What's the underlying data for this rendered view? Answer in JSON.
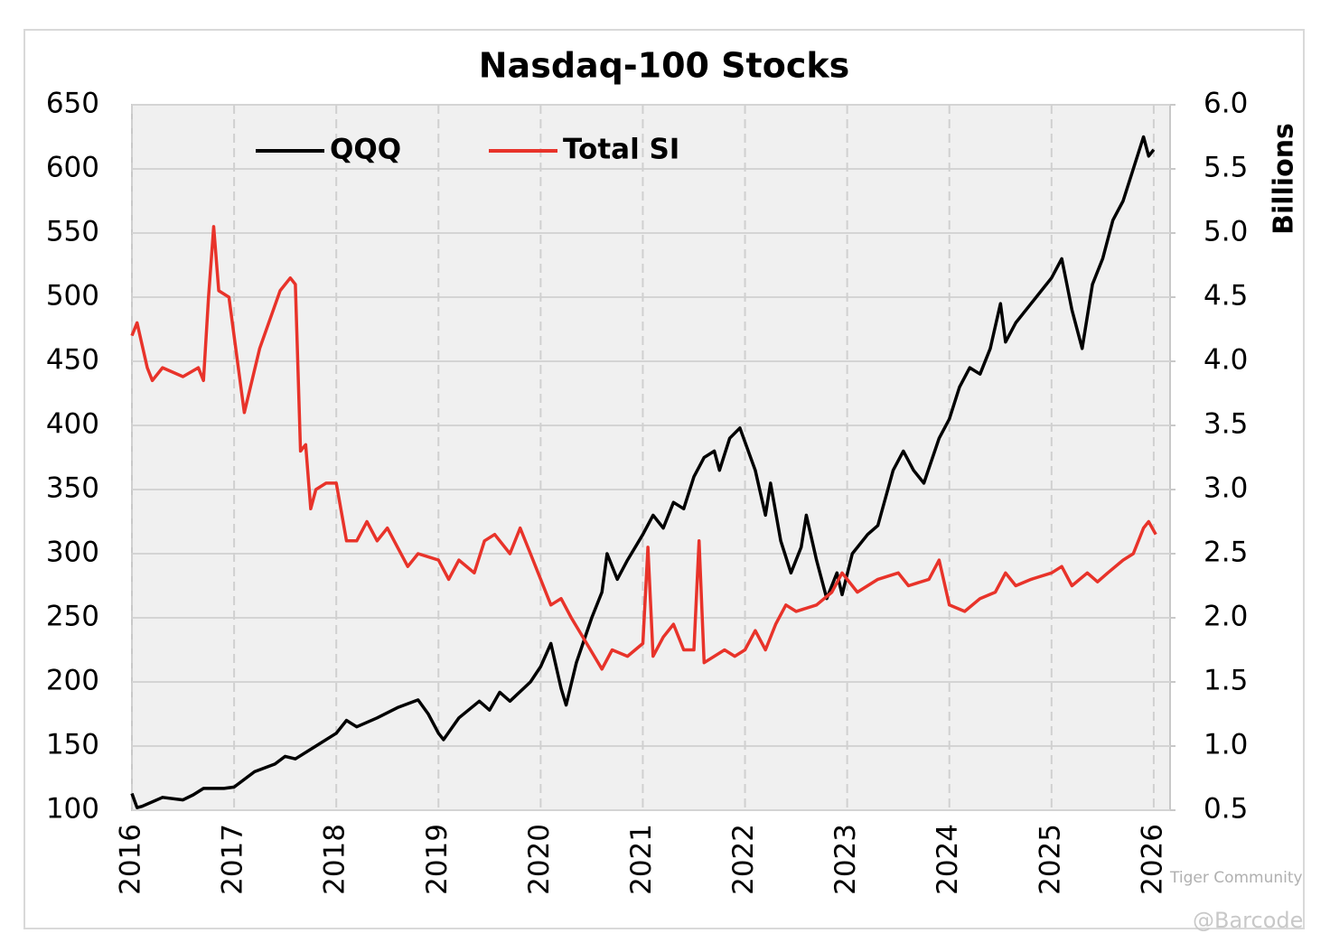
{
  "chart_data": {
    "type": "line",
    "title": "Nasdaq-100 Stocks",
    "y2_label": "Billions",
    "xlim": [
      2016,
      2026.16
    ],
    "xticks": [
      2016,
      2017,
      2018,
      2019,
      2020,
      2021,
      2022,
      2023,
      2024,
      2025,
      2026
    ],
    "ylim": [
      100,
      650
    ],
    "yticks": [
      100,
      150,
      200,
      250,
      300,
      350,
      400,
      450,
      500,
      550,
      600,
      650
    ],
    "y2lim": [
      0.5,
      6.0
    ],
    "y2ticks": [
      0.5,
      {
        "value": 1,
        "label": "1.0"
      },
      1.5,
      {
        "value": 2,
        "label": "2.0"
      },
      2.5,
      {
        "value": 3,
        "label": "3.0"
      },
      3.5,
      {
        "value": 4,
        "label": "4.0"
      },
      4.5,
      {
        "value": 5,
        "label": "5.0"
      },
      5.5,
      {
        "value": 6,
        "label": "6.0"
      }
    ],
    "grid": true,
    "legend": "top-left",
    "series": [
      {
        "name": "QQQ",
        "color": "#000000",
        "x": [
          2016.0,
          2016.05,
          2016.1,
          2016.3,
          2016.5,
          2016.6,
          2016.7,
          2016.9,
          2017.0,
          2017.2,
          2017.4,
          2017.5,
          2017.6,
          2017.8,
          2018.0,
          2018.1,
          2018.2,
          2018.4,
          2018.6,
          2018.8,
          2018.9,
          2019.0,
          2019.05,
          2019.2,
          2019.4,
          2019.5,
          2019.6,
          2019.7,
          2019.9,
          2020.0,
          2020.1,
          2020.2,
          2020.25,
          2020.35,
          2020.5,
          2020.6,
          2020.65,
          2020.75,
          2020.85,
          2021.0,
          2021.1,
          2021.2,
          2021.3,
          2021.4,
          2021.5,
          2021.6,
          2021.7,
          2021.75,
          2021.85,
          2021.95,
          2022.1,
          2022.2,
          2022.25,
          2022.35,
          2022.45,
          2022.55,
          2022.6,
          2022.7,
          2022.8,
          2022.9,
          2022.95,
          2023.05,
          2023.2,
          2023.3,
          2023.45,
          2023.55,
          2023.65,
          2023.75,
          2023.9,
          2024.0,
          2024.1,
          2024.2,
          2024.3,
          2024.4,
          2024.5,
          2024.55,
          2024.65,
          2024.75,
          2024.9,
          2025.0,
          2025.1,
          2025.15,
          2025.2,
          2025.3,
          2025.4,
          2025.5,
          2025.6,
          2025.7,
          2025.8,
          2025.9,
          2025.95,
          2026.0
        ],
        "values": [
          113,
          102,
          103,
          110,
          108,
          112,
          117,
          117,
          118,
          130,
          136,
          142,
          140,
          150,
          160,
          170,
          165,
          172,
          180,
          186,
          175,
          160,
          155,
          172,
          185,
          178,
          192,
          185,
          200,
          212,
          230,
          195,
          182,
          215,
          250,
          270,
          300,
          280,
          295,
          315,
          330,
          320,
          340,
          335,
          360,
          375,
          380,
          365,
          390,
          398,
          365,
          330,
          355,
          310,
          285,
          305,
          330,
          295,
          265,
          285,
          268,
          300,
          315,
          322,
          365,
          380,
          365,
          355,
          390,
          405,
          430,
          445,
          440,
          460,
          495,
          465,
          480,
          490,
          505,
          515,
          530,
          510,
          490,
          460,
          510,
          530,
          560,
          575,
          600,
          625,
          610,
          615
        ]
      },
      {
        "name": "Total SI",
        "color": "#e8332a",
        "axis": "y2",
        "x": [
          2016.0,
          2016.05,
          2016.15,
          2016.2,
          2016.3,
          2016.5,
          2016.65,
          2016.7,
          2016.75,
          2016.8,
          2016.85,
          2016.95,
          2017.05,
          2017.1,
          2017.25,
          2017.45,
          2017.55,
          2017.6,
          2017.65,
          2017.7,
          2017.75,
          2017.8,
          2017.9,
          2018.0,
          2018.1,
          2018.2,
          2018.3,
          2018.4,
          2018.5,
          2018.6,
          2018.7,
          2018.8,
          2019.0,
          2019.1,
          2019.2,
          2019.35,
          2019.45,
          2019.55,
          2019.7,
          2019.8,
          2019.9,
          2020.0,
          2020.1,
          2020.2,
          2020.3,
          2020.45,
          2020.6,
          2020.7,
          2020.85,
          2021.0,
          2021.05,
          2021.1,
          2021.2,
          2021.3,
          2021.4,
          2021.5,
          2021.55,
          2021.6,
          2021.8,
          2021.9,
          2022.0,
          2022.1,
          2022.2,
          2022.3,
          2022.4,
          2022.5,
          2022.7,
          2022.85,
          2022.95,
          2023.1,
          2023.3,
          2023.5,
          2023.6,
          2023.8,
          2023.9,
          2024.0,
          2024.15,
          2024.3,
          2024.45,
          2024.55,
          2024.65,
          2024.8,
          2025.0,
          2025.1,
          2025.2,
          2025.35,
          2025.45,
          2025.55,
          2025.7,
          2025.8,
          2025.9,
          2025.95,
          2026.02
        ],
        "values": [
          4.2,
          4.3,
          3.95,
          3.85,
          3.95,
          3.88,
          3.95,
          3.85,
          4.5,
          5.05,
          4.55,
          4.5,
          3.9,
          3.6,
          4.1,
          4.55,
          4.65,
          4.6,
          3.3,
          3.35,
          2.85,
          3.0,
          3.05,
          3.05,
          2.6,
          2.6,
          2.75,
          2.6,
          2.7,
          2.55,
          2.4,
          2.5,
          2.45,
          2.3,
          2.45,
          2.35,
          2.6,
          2.65,
          2.5,
          2.7,
          2.5,
          2.3,
          2.1,
          2.15,
          2.0,
          1.8,
          1.6,
          1.75,
          1.7,
          1.8,
          2.55,
          1.7,
          1.85,
          1.95,
          1.75,
          1.75,
          2.6,
          1.65,
          1.75,
          1.7,
          1.75,
          1.9,
          1.75,
          1.95,
          2.1,
          2.05,
          2.1,
          2.2,
          2.35,
          2.2,
          2.3,
          2.35,
          2.25,
          2.3,
          2.45,
          2.1,
          2.05,
          2.15,
          2.2,
          2.35,
          2.25,
          2.3,
          2.35,
          2.4,
          2.25,
          2.35,
          2.28,
          2.35,
          2.45,
          2.5,
          2.7,
          2.75,
          2.65
        ]
      }
    ]
  },
  "watermarks": [
    "Tiger Community",
    "@Barcode"
  ]
}
